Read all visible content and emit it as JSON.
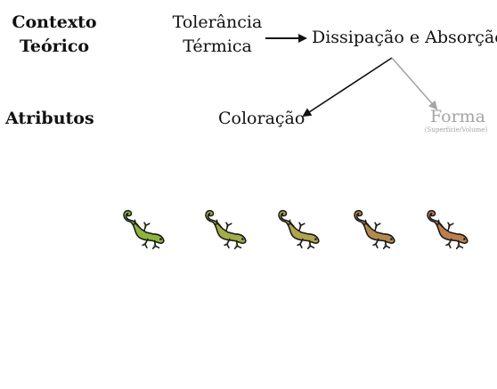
{
  "headers": {
    "context_line1": "Contexto",
    "context_line2": "Teórico",
    "attributes": "Atributos"
  },
  "nodes": {
    "tolerance_line1": "Tolerância",
    "tolerance_line2": "Térmica",
    "dissipation": "Dissipação e Absorção",
    "coloration": "Coloração",
    "shape": "Forma",
    "shape_sub": "(Superfície/Volume)"
  },
  "colors": {
    "arrow_primary": "#111111",
    "arrow_secondary": "#a5a5a5",
    "lizard_outline": "#1a1a1a"
  },
  "lizards": [
    {
      "name": "lizard-green",
      "fill": "#8db43c"
    },
    {
      "name": "lizard-yellow-green",
      "fill": "#a2ad46"
    },
    {
      "name": "lizard-olive",
      "fill": "#afa54c"
    },
    {
      "name": "lizard-tan",
      "fill": "#b2894e"
    },
    {
      "name": "lizard-brown-red",
      "fill": "#bb7f4e"
    }
  ]
}
